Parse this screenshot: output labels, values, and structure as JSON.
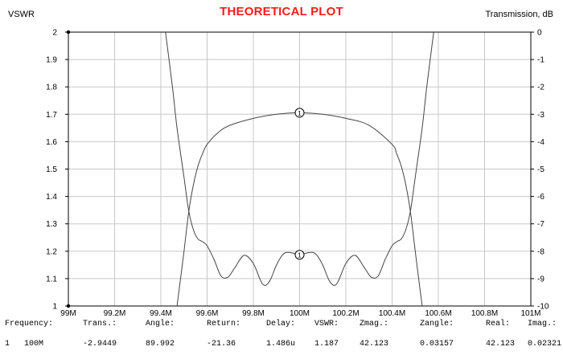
{
  "chart_data": {
    "type": "line",
    "title": "THEORETICAL PLOT",
    "left_axis_label": "VSWR",
    "right_axis_label": "Transmission, dB",
    "x_ticks": [
      "99M",
      "99.2M",
      "99.4M",
      "99.6M",
      "99.8M",
      "100M",
      "100.2M",
      "100.4M",
      "100.6M",
      "100.8M",
      "101M"
    ],
    "x_range_mhz": [
      99,
      101
    ],
    "y_left_ticks": [
      "2",
      "1.9",
      "1.8",
      "1.7",
      "1.6",
      "1.5",
      "1.4",
      "1.3",
      "1.2",
      "1.1",
      "1"
    ],
    "y_left_range": [
      1,
      2
    ],
    "y_right_ticks": [
      "0",
      "-1",
      "-2",
      "-3",
      "-4",
      "-5",
      "-6",
      "-7",
      "-8",
      "-9",
      "-10"
    ],
    "y_right_range": [
      -10,
      0
    ],
    "grid": true,
    "marker_label": "1",
    "marker_x_mhz": 100,
    "series": [
      {
        "axis": "right",
        "x": [
          99.47,
          99.5,
          99.52,
          99.54,
          99.56,
          99.58,
          99.6,
          99.65,
          99.7,
          99.8,
          99.9,
          100,
          100.1,
          100.2,
          100.3,
          100.4,
          100.42,
          100.44,
          100.46,
          100.48,
          100.5,
          100.53
        ],
        "y": [
          -10.0,
          -8.0,
          -6.6,
          -5.6,
          -4.9,
          -4.45,
          -4.1,
          -3.65,
          -3.4,
          -3.15,
          -3.0,
          -2.9449,
          -3.0,
          -3.15,
          -3.4,
          -4.1,
          -4.45,
          -4.9,
          -5.6,
          -6.6,
          -8.0,
          -10.0
        ]
      },
      {
        "axis": "left",
        "x": [
          99.42,
          99.45,
          99.47,
          99.5,
          99.52,
          99.54,
          99.56,
          99.58,
          99.6,
          99.63,
          99.66,
          99.69,
          99.72,
          99.76,
          99.8,
          99.84,
          99.87,
          99.9,
          99.93,
          99.96,
          100,
          100.04,
          100.07,
          100.1,
          100.13,
          100.16,
          100.2,
          100.24,
          100.28,
          100.31,
          100.34,
          100.37,
          100.4,
          100.42,
          100.44,
          100.46,
          100.48,
          100.5,
          100.53,
          100.55,
          100.58
        ],
        "y": [
          2.0,
          1.8,
          1.65,
          1.47,
          1.35,
          1.28,
          1.245,
          1.235,
          1.22,
          1.17,
          1.11,
          1.105,
          1.14,
          1.185,
          1.155,
          1.08,
          1.09,
          1.15,
          1.19,
          1.195,
          1.187,
          1.195,
          1.19,
          1.15,
          1.09,
          1.08,
          1.155,
          1.185,
          1.14,
          1.105,
          1.11,
          1.17,
          1.22,
          1.235,
          1.245,
          1.28,
          1.35,
          1.47,
          1.65,
          1.8,
          2.0
        ]
      }
    ]
  },
  "readout": {
    "headers": [
      "Frequency:",
      "Trans.:",
      "Angle:",
      "Return:",
      "Delay:",
      "VSWR:",
      "Zmag.:",
      "Zangle:",
      "Real:",
      "Imag.:"
    ],
    "index": "1",
    "values": [
      "100M",
      "-2.9449",
      "89.992",
      "-21.36",
      "1.486u",
      "1.187",
      "42.123",
      "0.03157",
      "42.123",
      "0.02321"
    ]
  }
}
